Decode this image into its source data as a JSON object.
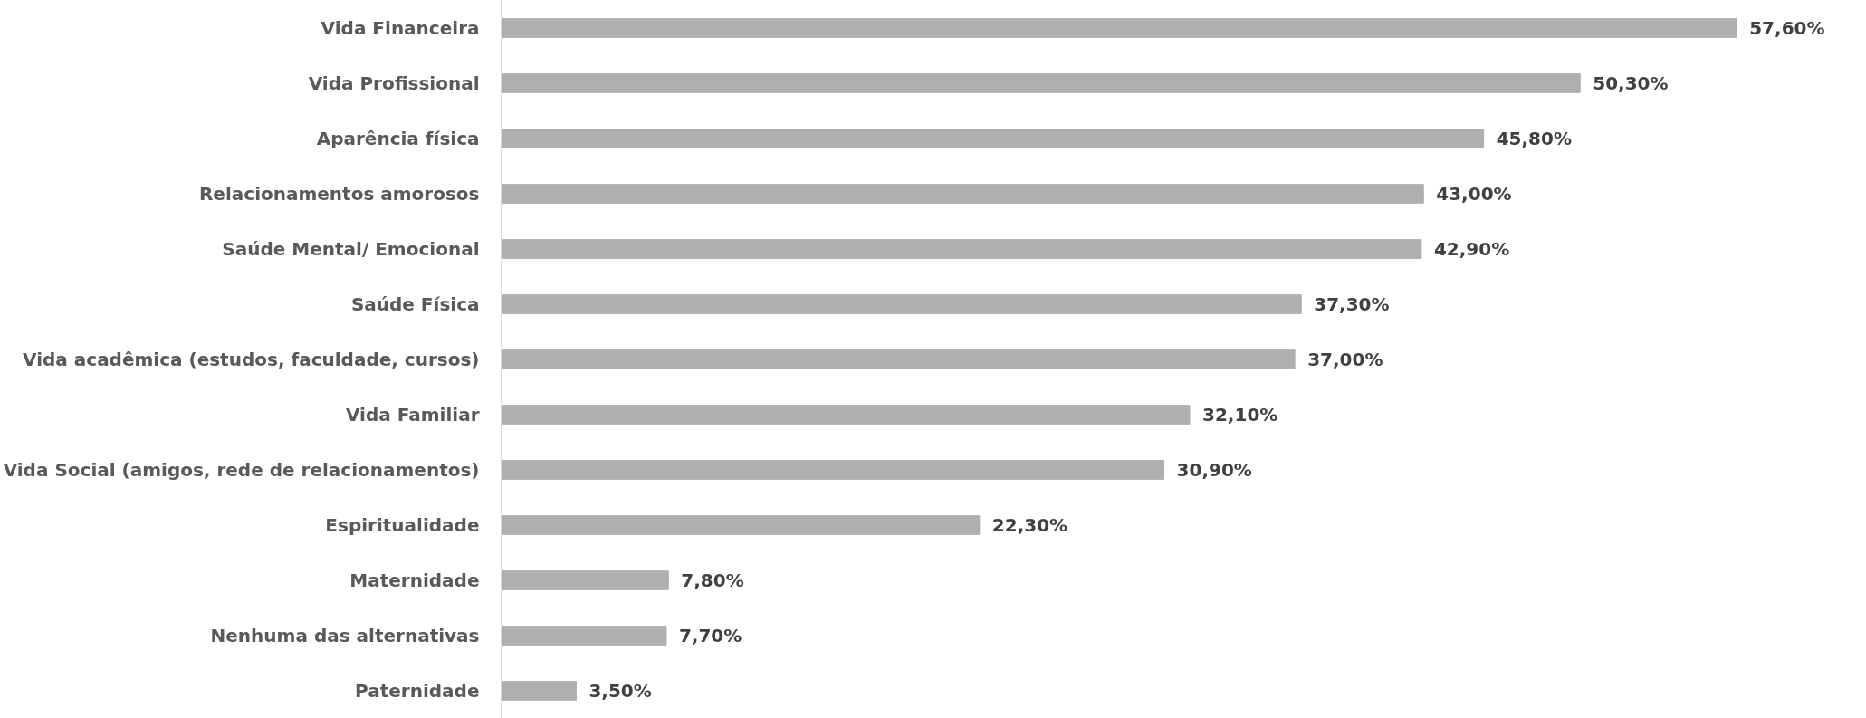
{
  "chart_data": {
    "type": "bar",
    "orientation": "horizontal",
    "categories": [
      "Vida Financeira",
      "Vida Profissional",
      "Aparência física",
      "Relacionamentos amorosos",
      "Saúde Mental/ Emocional",
      "Saúde Física",
      "Vida acadêmica (estudos, faculdade, cursos)",
      "Vida Familiar",
      "Vida Social (amigos, rede de relacionamentos)",
      "Espiritualidade",
      "Maternidade",
      "Nenhuma das alternativas",
      "Paternidade"
    ],
    "values": [
      57.6,
      50.3,
      45.8,
      43.0,
      42.9,
      37.3,
      37.0,
      32.1,
      30.9,
      22.3,
      7.8,
      7.7,
      3.5
    ],
    "value_labels": [
      "57,60%",
      "50,30%",
      "45,80%",
      "43,00%",
      "42,90%",
      "37,30%",
      "37,00%",
      "32,10%",
      "30,90%",
      "22,30%",
      "7,80%",
      "7,70%",
      "3,50%"
    ],
    "color": "#afafaf",
    "grid": false,
    "tick_labels": "y"
  }
}
